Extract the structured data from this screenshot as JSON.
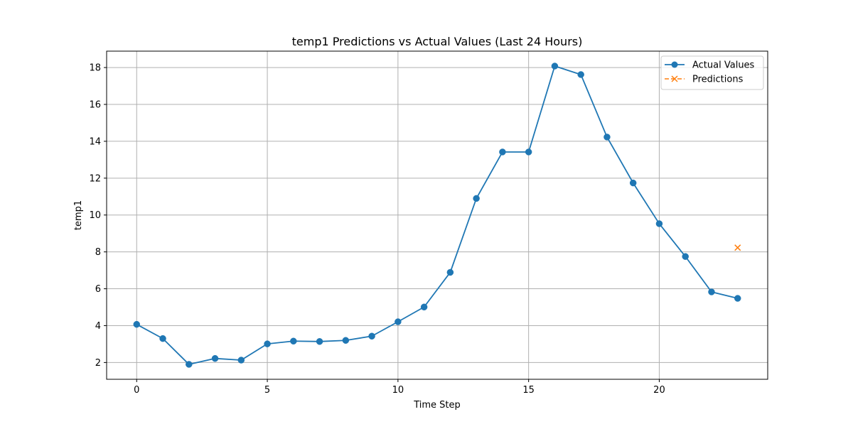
{
  "chart_data": {
    "type": "line",
    "title": "temp1 Predictions vs Actual Values (Last 24 Hours)",
    "xlabel": "Time Step",
    "ylabel": "temp1",
    "xlim": [
      -1.15,
      24.15
    ],
    "ylim": [
      1.09,
      18.89
    ],
    "xticks": [
      0,
      5,
      10,
      15,
      20
    ],
    "yticks": [
      2,
      4,
      6,
      8,
      10,
      12,
      14,
      16,
      18
    ],
    "grid": true,
    "legend_position": "top-right",
    "colors": {
      "actual": "#1f77b4",
      "predictions": "#ff7f0e",
      "grid": "#b0b0b0"
    },
    "series": [
      {
        "name": "Actual Values",
        "style": "line-circle",
        "x": [
          0,
          1,
          2,
          3,
          4,
          5,
          6,
          7,
          8,
          9,
          10,
          11,
          12,
          13,
          14,
          15,
          16,
          17,
          18,
          19,
          20,
          21,
          22,
          23
        ],
        "y": [
          4.07,
          3.3,
          1.9,
          2.22,
          2.13,
          3.01,
          3.16,
          3.14,
          3.2,
          3.43,
          4.21,
          5.01,
          6.89,
          10.9,
          13.42,
          13.42,
          18.08,
          17.62,
          14.23,
          11.74,
          9.53,
          7.75,
          5.83,
          5.48
        ]
      },
      {
        "name": "Predictions",
        "style": "dashed-x",
        "x": [
          23
        ],
        "y": [
          8.23
        ]
      }
    ]
  }
}
